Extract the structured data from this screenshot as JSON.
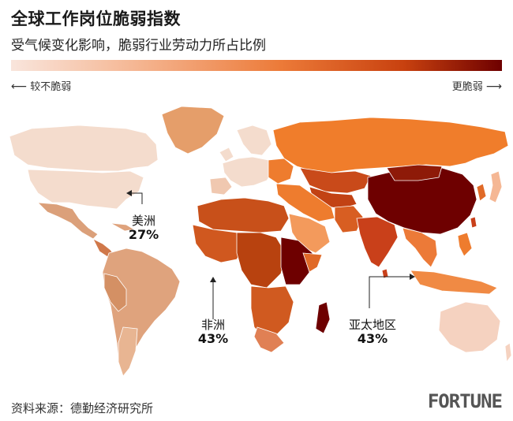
{
  "title": "全球工作岗位脆弱指数",
  "subtitle": "受气候变化影响，脆弱行业劳动力所占比例",
  "legend": {
    "low_label": "较不脆弱",
    "high_label": "更脆弱",
    "arrow_left": "⟵",
    "arrow_right": "⟶",
    "colors": [
      "#f9e5dc",
      "#f5b794",
      "#ec7a38",
      "#c8410f",
      "#6e0000"
    ]
  },
  "regions": [
    {
      "name": "美洲",
      "value": "27%",
      "color": "#dfa37d"
    },
    {
      "name": "非洲",
      "value": "43%",
      "color": "#c8501a"
    },
    {
      "name": "亚太地区",
      "value": "43%",
      "color": "#ee7c2e"
    }
  ],
  "source": "资料来源：德勤经济研究所",
  "logo": "FORTUNE"
}
